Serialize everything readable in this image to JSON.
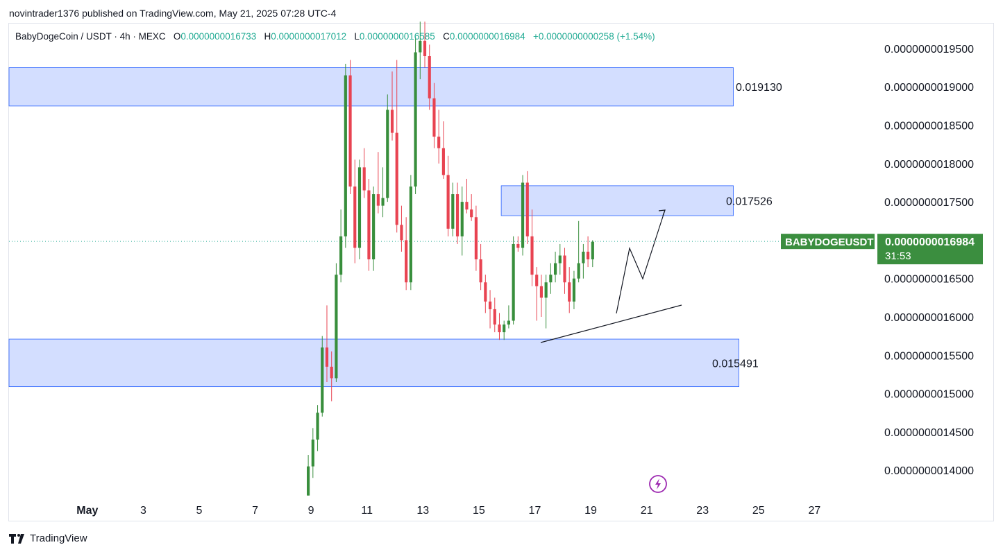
{
  "header": {
    "publisher": "novintrader1376 published on TradingView.com, May 21, 2025 07:28 UTC-4"
  },
  "legend": {
    "symbol": "BabyDogeCoin / USDT · 4h · MEXC",
    "o_label": "O",
    "o_value": "0.0000000016733",
    "h_label": "H",
    "h_value": "0.0000000017012",
    "l_label": "L",
    "l_value": "0.0000000016585",
    "c_label": "C",
    "c_value": "0.0000000016984",
    "change": "+0.0000000000258 (+1.54%)"
  },
  "price_tag": {
    "symbol": "BABYDOGEUSDT",
    "price": "0.0000000016984",
    "countdown": "31:53"
  },
  "brand": {
    "name": "TradingView"
  },
  "colors": {
    "up": "#22ab94",
    "down": "#f23645",
    "candle_up": "#388e3c",
    "candle_down": "#e84351",
    "zone_fill": "#d1dcff",
    "zone_border": "#2962ff",
    "tag_green": "#3b8e3f"
  },
  "chart_data": {
    "type": "candlestick",
    "ylim": [
      1.3667e-09,
      1.9825e-09
    ],
    "y_ticks": [
      {
        "value": 1.95e-09,
        "label": "0.0000000019500"
      },
      {
        "value": 1.9e-09,
        "label": "0.0000000019000"
      },
      {
        "value": 1.85e-09,
        "label": "0.0000000018500"
      },
      {
        "value": 1.8e-09,
        "label": "0.0000000018000"
      },
      {
        "value": 1.75e-09,
        "label": "0.0000000017500"
      },
      {
        "value": 1.65e-09,
        "label": "0.0000000016500"
      },
      {
        "value": 1.6e-09,
        "label": "0.0000000016000"
      },
      {
        "value": 1.55e-09,
        "label": "0.0000000015500"
      },
      {
        "value": 1.5e-09,
        "label": "0.0000000015000"
      },
      {
        "value": 1.45e-09,
        "label": "0.0000000014500"
      },
      {
        "value": 1.4e-09,
        "label": "0.0000000014000"
      }
    ],
    "x_ticks": [
      {
        "day": 1,
        "label": "May"
      },
      {
        "day": 3,
        "label": "3"
      },
      {
        "day": 5,
        "label": "5"
      },
      {
        "day": 7,
        "label": "7"
      },
      {
        "day": 9,
        "label": "9"
      },
      {
        "day": 11,
        "label": "11"
      },
      {
        "day": 13,
        "label": "13"
      },
      {
        "day": 15,
        "label": "15"
      },
      {
        "day": 17,
        "label": "17"
      },
      {
        "day": 19,
        "label": "19"
      },
      {
        "day": 21,
        "label": "21"
      },
      {
        "day": 23,
        "label": "23"
      },
      {
        "day": 25,
        "label": "25"
      },
      {
        "day": 27,
        "label": "27"
      }
    ],
    "xlim_days": [
      -1.8,
      29.2
    ],
    "zones": [
      {
        "top": 1.925e-09,
        "bottom": 1.875e-09,
        "label": "0.019130",
        "day_start": -1.8,
        "day_end": 24.1
      },
      {
        "top": 1.771e-09,
        "bottom": 1.732e-09,
        "label": "0.017526",
        "day_start": 15.8,
        "day_end": 24.1
      },
      {
        "top": 1.571e-09,
        "bottom": 1.509e-09,
        "label": "0.015491",
        "day_start": -1.8,
        "day_end": 24.3
      }
    ],
    "last_price": 1.6984e-09,
    "candles": [
      {
        "o": 13.67,
        "h": 14.2,
        "l": 13.67,
        "c": 14.05
      },
      {
        "o": 14.05,
        "h": 14.55,
        "l": 13.9,
        "c": 14.4
      },
      {
        "o": 14.4,
        "h": 14.85,
        "l": 14.25,
        "c": 14.75
      },
      {
        "o": 14.75,
        "h": 15.75,
        "l": 14.7,
        "c": 15.6
      },
      {
        "o": 15.6,
        "h": 16.15,
        "l": 15.15,
        "c": 15.35
      },
      {
        "o": 15.35,
        "h": 15.55,
        "l": 14.9,
        "c": 15.2
      },
      {
        "o": 15.2,
        "h": 16.7,
        "l": 15.15,
        "c": 16.55
      },
      {
        "o": 16.55,
        "h": 17.4,
        "l": 16.45,
        "c": 17.05
      },
      {
        "o": 17.05,
        "h": 19.3,
        "l": 16.9,
        "c": 19.15
      },
      {
        "o": 19.15,
        "h": 19.35,
        "l": 17.6,
        "c": 17.7
      },
      {
        "o": 17.7,
        "h": 18.05,
        "l": 16.7,
        "c": 16.9
      },
      {
        "o": 16.9,
        "h": 18.05,
        "l": 16.75,
        "c": 17.95
      },
      {
        "o": 17.95,
        "h": 18.2,
        "l": 17.55,
        "c": 17.65
      },
      {
        "o": 17.65,
        "h": 17.8,
        "l": 16.6,
        "c": 16.75
      },
      {
        "o": 16.75,
        "h": 17.7,
        "l": 16.6,
        "c": 17.6
      },
      {
        "o": 17.6,
        "h": 18.15,
        "l": 17.35,
        "c": 17.45
      },
      {
        "o": 17.45,
        "h": 17.95,
        "l": 17.3,
        "c": 17.55
      },
      {
        "o": 17.55,
        "h": 18.9,
        "l": 17.5,
        "c": 18.7
      },
      {
        "o": 18.7,
        "h": 19.2,
        "l": 18.3,
        "c": 18.4
      },
      {
        "o": 18.4,
        "h": 19.35,
        "l": 17.1,
        "c": 17.2
      },
      {
        "o": 17.2,
        "h": 17.45,
        "l": 16.85,
        "c": 17.0
      },
      {
        "o": 17.0,
        "h": 17.3,
        "l": 16.35,
        "c": 16.45
      },
      {
        "o": 16.45,
        "h": 17.85,
        "l": 16.35,
        "c": 17.7
      },
      {
        "o": 17.7,
        "h": 19.65,
        "l": 17.6,
        "c": 19.45
      },
      {
        "o": 19.45,
        "h": 19.85,
        "l": 19.1,
        "c": 19.6
      },
      {
        "o": 19.6,
        "h": 19.85,
        "l": 19.25,
        "c": 19.4
      },
      {
        "o": 19.4,
        "h": 19.55,
        "l": 18.7,
        "c": 18.85
      },
      {
        "o": 18.85,
        "h": 19.05,
        "l": 18.2,
        "c": 18.35
      },
      {
        "o": 18.35,
        "h": 18.7,
        "l": 18.0,
        "c": 18.2
      },
      {
        "o": 18.2,
        "h": 18.55,
        "l": 17.8,
        "c": 17.85
      },
      {
        "o": 17.85,
        "h": 18.1,
        "l": 17.05,
        "c": 17.15
      },
      {
        "o": 17.15,
        "h": 17.75,
        "l": 17.05,
        "c": 17.6
      },
      {
        "o": 17.6,
        "h": 17.75,
        "l": 16.95,
        "c": 17.05
      },
      {
        "o": 17.05,
        "h": 17.7,
        "l": 16.8,
        "c": 17.5
      },
      {
        "o": 17.5,
        "h": 17.8,
        "l": 17.35,
        "c": 17.4
      },
      {
        "o": 17.4,
        "h": 17.6,
        "l": 17.25,
        "c": 17.3
      },
      {
        "o": 17.3,
        "h": 17.45,
        "l": 16.6,
        "c": 16.75
      },
      {
        "o": 16.75,
        "h": 16.95,
        "l": 16.35,
        "c": 16.45
      },
      {
        "o": 16.45,
        "h": 16.55,
        "l": 16.05,
        "c": 16.2
      },
      {
        "o": 16.2,
        "h": 16.35,
        "l": 15.85,
        "c": 16.1
      },
      {
        "o": 16.1,
        "h": 16.25,
        "l": 15.8,
        "c": 15.9
      },
      {
        "o": 15.9,
        "h": 16.05,
        "l": 15.7,
        "c": 15.8
      },
      {
        "o": 15.8,
        "h": 15.95,
        "l": 15.7,
        "c": 15.9
      },
      {
        "o": 15.9,
        "h": 16.15,
        "l": 15.85,
        "c": 15.95
      },
      {
        "o": 15.95,
        "h": 17.05,
        "l": 15.9,
        "c": 16.95
      },
      {
        "o": 16.95,
        "h": 17.05,
        "l": 16.85,
        "c": 16.9
      },
      {
        "o": 16.9,
        "h": 17.85,
        "l": 16.8,
        "c": 17.75
      },
      {
        "o": 17.75,
        "h": 17.9,
        "l": 16.95,
        "c": 17.05
      },
      {
        "o": 17.05,
        "h": 17.4,
        "l": 16.4,
        "c": 16.55
      },
      {
        "o": 16.55,
        "h": 16.65,
        "l": 15.95,
        "c": 16.4
      },
      {
        "o": 16.4,
        "h": 16.55,
        "l": 16.0,
        "c": 16.25
      },
      {
        "o": 16.25,
        "h": 16.55,
        "l": 15.85,
        "c": 16.45
      },
      {
        "o": 16.45,
        "h": 16.7,
        "l": 16.3,
        "c": 16.55
      },
      {
        "o": 16.55,
        "h": 16.85,
        "l": 16.45,
        "c": 16.7
      },
      {
        "o": 16.7,
        "h": 16.95,
        "l": 16.55,
        "c": 16.8
      },
      {
        "o": 16.8,
        "h": 16.9,
        "l": 16.3,
        "c": 16.45
      },
      {
        "o": 16.45,
        "h": 16.65,
        "l": 16.05,
        "c": 16.2
      },
      {
        "o": 16.2,
        "h": 16.6,
        "l": 16.1,
        "c": 16.5
      },
      {
        "o": 16.5,
        "h": 17.25,
        "l": 16.45,
        "c": 16.7
      },
      {
        "o": 16.7,
        "h": 16.95,
        "l": 16.5,
        "c": 16.85
      },
      {
        "o": 16.85,
        "h": 17.05,
        "l": 16.65,
        "c": 16.75
      },
      {
        "o": 16.75,
        "h": 17.0,
        "l": 16.65,
        "c": 16.98
      }
    ],
    "candle_scale": 1e-10,
    "candle_start_day": 8.9,
    "candle_step_days": 0.1667
  }
}
